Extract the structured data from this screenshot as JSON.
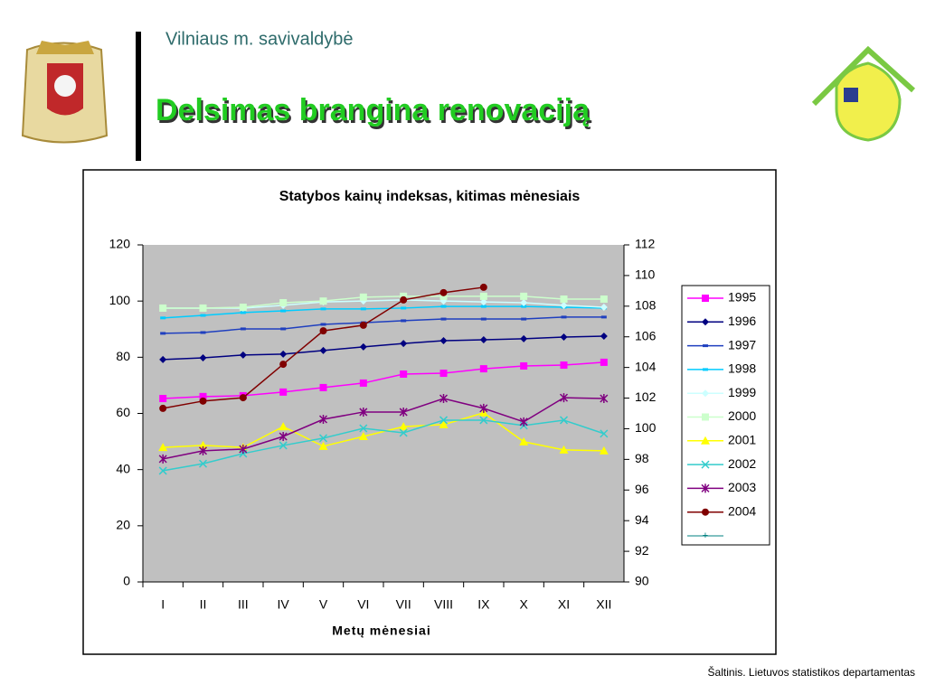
{
  "header": {
    "org": "Vilniaus m. savivaldybė",
    "title": "Delsimas brangina renovaciją"
  },
  "source": "Šaltinis. Lietuvos statistikos departamentas",
  "chart_data": {
    "type": "line",
    "title": "Statybos kainų indeksas, kitimas mėnesiais",
    "x_label": "Metų mėnesiai",
    "categories": [
      "I",
      "II",
      "III",
      "IV",
      "V",
      "VI",
      "VII",
      "VIII",
      "IX",
      "X",
      "XI",
      "XII"
    ],
    "ylim": [
      0,
      120
    ],
    "yticks": [
      0,
      20,
      40,
      60,
      80,
      100,
      120
    ],
    "y2lim": [
      90,
      112
    ],
    "y2ticks": [
      90,
      92,
      94,
      96,
      98,
      100,
      102,
      104,
      106,
      108,
      110,
      112
    ],
    "grid": false,
    "legend": "right",
    "series": [
      {
        "name": "1995",
        "color": "#ff00ff",
        "marker": "square",
        "values": [
          65.3,
          66.0,
          66.3,
          67.6,
          69.2,
          70.8,
          74.0,
          74.3,
          75.9,
          76.9,
          77.2,
          78.2
        ]
      },
      {
        "name": "1996",
        "color": "#000080",
        "marker": "diamond",
        "values": [
          79.2,
          79.8,
          80.8,
          81.1,
          82.4,
          83.7,
          84.9,
          85.9,
          86.2,
          86.6,
          87.2,
          87.5
        ]
      },
      {
        "name": "1997",
        "color": "#1f3fbf",
        "marker": "dash",
        "values": [
          88.5,
          88.8,
          90.1,
          90.1,
          91.7,
          92.3,
          93.0,
          93.6,
          93.6,
          93.6,
          94.3,
          94.3
        ]
      },
      {
        "name": "1998",
        "color": "#00ccff",
        "marker": "dash",
        "values": [
          94.0,
          94.9,
          95.9,
          96.5,
          97.2,
          97.2,
          97.5,
          98.1,
          98.1,
          98.1,
          97.8,
          97.5
        ]
      },
      {
        "name": "1999",
        "color": "#ccffff",
        "marker": "diamond",
        "values": [
          97.5,
          97.5,
          97.5,
          98.5,
          99.7,
          100.0,
          100.4,
          100.0,
          99.7,
          99.4,
          98.5,
          97.8
        ]
      },
      {
        "name": "2000",
        "color": "#ccffcc",
        "marker": "square",
        "values": [
          97.5,
          97.5,
          97.8,
          99.4,
          100.0,
          101.4,
          101.7,
          101.7,
          101.7,
          101.7,
          100.7,
          100.7
        ]
      },
      {
        "name": "2001",
        "color": "#ffff00",
        "marker": "triangle",
        "values": [
          47.9,
          48.6,
          47.9,
          55.3,
          48.3,
          51.8,
          55.3,
          56.0,
          60.2,
          49.9,
          47.0,
          46.7
        ]
      },
      {
        "name": "2002",
        "color": "#33cccc",
        "marker": "x",
        "values": [
          39.6,
          42.1,
          45.7,
          48.6,
          51.2,
          54.7,
          53.1,
          57.6,
          57.6,
          55.7,
          57.6,
          52.8
        ]
      },
      {
        "name": "2003",
        "color": "#800080",
        "marker": "star",
        "values": [
          43.8,
          46.7,
          47.3,
          51.8,
          57.9,
          60.5,
          60.5,
          65.3,
          61.8,
          57.0,
          65.6,
          65.3
        ]
      },
      {
        "name": "2004",
        "color": "#800000",
        "marker": "circle",
        "values": [
          61.8,
          64.4,
          65.6,
          77.5,
          89.4,
          91.4,
          100.4,
          103.0,
          104.9,
          null,
          null,
          null
        ]
      }
    ]
  }
}
